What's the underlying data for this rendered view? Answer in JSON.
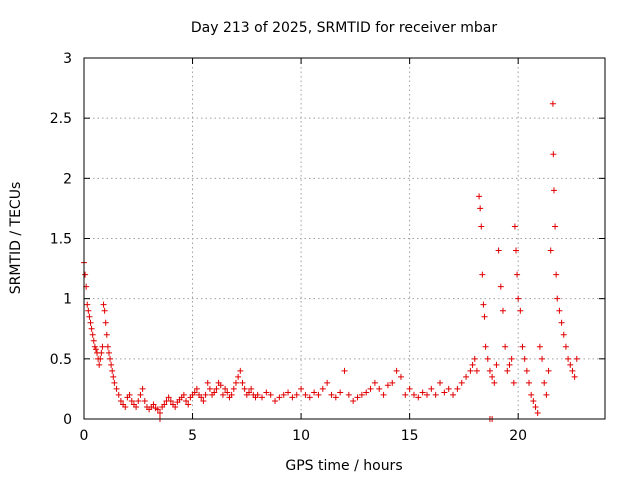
{
  "chart_data": {
    "type": "scatter",
    "title": "Day 213 of 2025, SRMTID for receiver mbar",
    "xlabel": "GPS time / hours",
    "ylabel": "SRMTID / TECUs",
    "xlim": [
      0,
      24
    ],
    "ylim": [
      0,
      3
    ],
    "xticks": [
      0,
      5,
      10,
      15,
      20
    ],
    "yticks": [
      0,
      0.5,
      1,
      1.5,
      2,
      2.5,
      3
    ],
    "xtick_labels": [
      "0",
      "5",
      "10",
      "15",
      "20"
    ],
    "ytick_labels": [
      "0",
      "0.5",
      "1",
      "1.5",
      "2",
      "2.5",
      "3"
    ],
    "grid": true,
    "marker": "plus",
    "color": "#e00000",
    "series": [
      {
        "name": "SRMTID",
        "x": [
          0.0,
          0.05,
          0.1,
          0.15,
          0.2,
          0.25,
          0.3,
          0.35,
          0.4,
          0.45,
          0.5,
          0.55,
          0.6,
          0.65,
          0.7,
          0.75,
          0.8,
          0.85,
          0.9,
          0.95,
          1.0,
          1.05,
          1.1,
          1.15,
          1.2,
          1.25,
          1.3,
          1.35,
          1.4,
          1.5,
          1.6,
          1.7,
          1.8,
          1.9,
          2.0,
          2.1,
          2.2,
          2.3,
          2.4,
          2.5,
          2.6,
          2.7,
          2.8,
          2.9,
          3.0,
          3.1,
          3.2,
          3.3,
          3.4,
          3.5,
          3.6,
          3.7,
          3.8,
          3.9,
          4.0,
          4.1,
          4.2,
          4.3,
          4.4,
          4.5,
          4.6,
          4.7,
          4.8,
          4.9,
          5.0,
          5.1,
          5.2,
          5.3,
          5.4,
          5.5,
          5.6,
          5.7,
          5.8,
          5.9,
          6.0,
          6.1,
          6.2,
          6.3,
          6.4,
          6.5,
          6.6,
          6.7,
          6.8,
          6.9,
          7.0,
          7.1,
          7.2,
          7.3,
          7.4,
          7.5,
          7.6,
          7.7,
          7.8,
          7.9,
          8.0,
          8.2,
          8.4,
          8.6,
          8.8,
          9.0,
          9.2,
          9.4,
          9.6,
          9.8,
          10.0,
          10.2,
          10.4,
          10.6,
          10.8,
          11.0,
          11.2,
          11.4,
          11.6,
          11.8,
          12.0,
          12.2,
          12.4,
          12.6,
          12.8,
          13.0,
          13.2,
          13.4,
          13.6,
          13.8,
          14.0,
          14.2,
          14.4,
          14.6,
          14.8,
          15.0,
          15.2,
          15.4,
          15.6,
          15.8,
          16.0,
          16.2,
          16.4,
          16.6,
          16.8,
          17.0,
          17.2,
          17.4,
          17.6,
          17.8,
          17.9,
          18.0,
          18.1,
          18.2,
          18.25,
          18.3,
          18.35,
          18.4,
          18.45,
          18.5,
          18.6,
          18.7,
          18.8,
          18.9,
          19.0,
          19.1,
          19.2,
          19.3,
          19.4,
          19.5,
          19.6,
          19.7,
          19.8,
          19.85,
          19.9,
          19.95,
          20.0,
          20.1,
          20.2,
          20.3,
          20.4,
          20.5,
          20.6,
          20.7,
          20.8,
          20.9,
          21.0,
          21.1,
          21.2,
          21.3,
          21.4,
          21.5,
          21.6,
          21.62,
          21.65,
          21.7,
          21.75,
          21.8,
          21.9,
          22.0,
          22.1,
          22.2,
          22.3,
          22.4,
          22.5,
          22.6,
          22.7,
          3.5,
          18.7,
          18.8
        ],
        "y": [
          1.3,
          1.2,
          1.1,
          0.95,
          0.9,
          0.85,
          0.8,
          0.75,
          0.7,
          0.65,
          0.6,
          0.58,
          0.55,
          0.5,
          0.45,
          0.5,
          0.55,
          0.6,
          0.95,
          0.9,
          0.8,
          0.7,
          0.6,
          0.55,
          0.5,
          0.45,
          0.4,
          0.35,
          0.3,
          0.25,
          0.2,
          0.15,
          0.12,
          0.1,
          0.18,
          0.2,
          0.15,
          0.12,
          0.1,
          0.15,
          0.2,
          0.25,
          0.15,
          0.1,
          0.08,
          0.1,
          0.12,
          0.09,
          0.08,
          0.05,
          0.1,
          0.12,
          0.15,
          0.18,
          0.15,
          0.12,
          0.1,
          0.14,
          0.16,
          0.18,
          0.2,
          0.15,
          0.12,
          0.18,
          0.2,
          0.22,
          0.25,
          0.2,
          0.18,
          0.15,
          0.2,
          0.3,
          0.25,
          0.2,
          0.22,
          0.25,
          0.3,
          0.28,
          0.2,
          0.25,
          0.22,
          0.18,
          0.2,
          0.25,
          0.3,
          0.35,
          0.4,
          0.3,
          0.25,
          0.2,
          0.22,
          0.25,
          0.2,
          0.18,
          0.2,
          0.18,
          0.22,
          0.2,
          0.15,
          0.18,
          0.2,
          0.22,
          0.18,
          0.2,
          0.25,
          0.2,
          0.18,
          0.22,
          0.2,
          0.25,
          0.3,
          0.2,
          0.18,
          0.22,
          0.4,
          0.2,
          0.15,
          0.18,
          0.2,
          0.22,
          0.25,
          0.3,
          0.25,
          0.2,
          0.28,
          0.3,
          0.4,
          0.35,
          0.2,
          0.25,
          0.2,
          0.18,
          0.22,
          0.2,
          0.25,
          0.2,
          0.3,
          0.22,
          0.25,
          0.2,
          0.25,
          0.3,
          0.35,
          0.4,
          0.45,
          0.5,
          0.4,
          1.85,
          1.75,
          1.6,
          1.2,
          0.95,
          0.85,
          0.6,
          0.5,
          0.4,
          0.35,
          0.3,
          0.45,
          1.4,
          1.1,
          0.9,
          0.6,
          0.4,
          0.45,
          0.5,
          0.3,
          1.6,
          1.4,
          1.2,
          1.0,
          0.9,
          0.6,
          0.5,
          0.4,
          0.3,
          0.2,
          0.15,
          0.1,
          0.05,
          0.6,
          0.5,
          0.3,
          0.2,
          0.4,
          1.4,
          2.62,
          2.2,
          1.9,
          1.6,
          1.2,
          1.0,
          0.9,
          0.8,
          0.7,
          0.6,
          0.5,
          0.45,
          0.4,
          0.35,
          0.5,
          0.0,
          0.0,
          0.0
        ]
      }
    ]
  }
}
